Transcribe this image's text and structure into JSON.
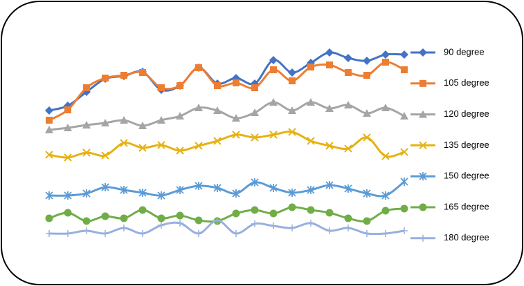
{
  "chart_data": {
    "type": "line",
    "smooth": true,
    "ylim": [
      0,
      340
    ],
    "series": [
      {
        "name": "90 degree",
        "color": "#4472c4",
        "marker": "diamond",
        "values": [
          220,
          227,
          247,
          266,
          270,
          276,
          250,
          256,
          282,
          259,
          267,
          259,
          293,
          275,
          289,
          304,
          296,
          292,
          301,
          301
        ]
      },
      {
        "name": "105 degree",
        "color": "#ed7d31",
        "marker": "square",
        "values": [
          206,
          221,
          253,
          267,
          271,
          275,
          253,
          256,
          282,
          256,
          260,
          253,
          279,
          263,
          283,
          286,
          275,
          271,
          290,
          279
        ]
      },
      {
        "name": "120 degree",
        "color": "#a5a5a5",
        "marker": "triangle",
        "values": [
          192,
          195,
          199,
          202,
          206,
          198,
          206,
          212,
          224,
          220,
          209,
          217,
          232,
          220,
          232,
          223,
          228,
          216,
          224,
          212
        ]
      },
      {
        "name": "135 degree",
        "color": "#e6b212",
        "marker": "x",
        "values": [
          156,
          152,
          159,
          155,
          173,
          166,
          170,
          162,
          169,
          176,
          185,
          181,
          185,
          189,
          176,
          169,
          165,
          181,
          154,
          160
        ]
      },
      {
        "name": "150 degree",
        "color": "#5b9bd5",
        "marker": "star",
        "values": [
          97,
          97,
          100,
          109,
          105,
          101,
          97,
          105,
          111,
          108,
          100,
          116,
          108,
          101,
          105,
          112,
          107,
          100,
          97,
          117
        ]
      },
      {
        "name": "165 degree",
        "color": "#70ad47",
        "marker": "circle",
        "values": [
          64,
          72,
          60,
          67,
          64,
          76,
          64,
          68,
          61,
          60,
          71,
          76,
          71,
          80,
          76,
          72,
          64,
          60,
          75,
          78
        ]
      },
      {
        "name": "180 degree",
        "color": "#98afdf",
        "marker": "plus",
        "values": [
          42,
          42,
          46,
          42,
          50,
          42,
          54,
          57,
          42,
          61,
          42,
          56,
          53,
          50,
          57,
          46,
          50,
          42,
          42,
          46
        ]
      }
    ]
  }
}
